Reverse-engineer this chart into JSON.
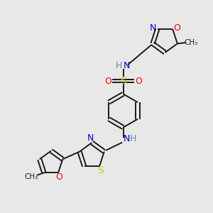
{
  "bg_color": "#e8e8e8",
  "atom_colors": {
    "C": "#1a1a1a",
    "N": "#0000cc",
    "O": "#ff0000",
    "S": "#cccc00",
    "H": "#5a9090"
  },
  "bond_color": "#1a1a1a",
  "lw": 1.4
}
